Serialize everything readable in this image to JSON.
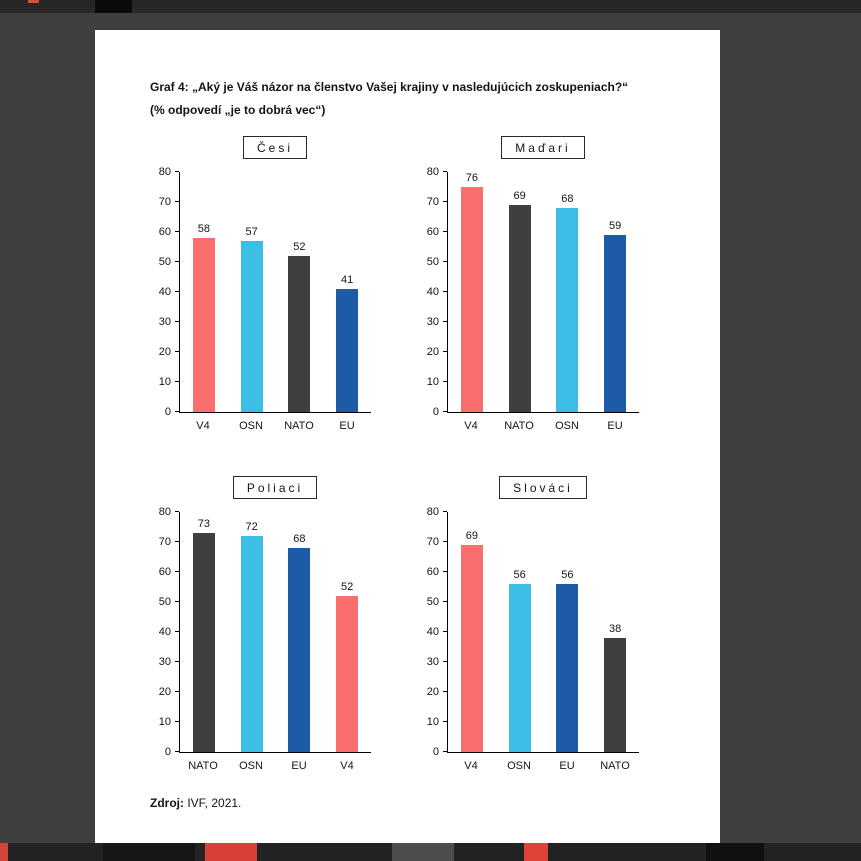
{
  "page": {
    "title_line1": "Graf 4: „Aký je Váš názor na členstvo Vašej krajiny v nasledujúcich zoskupeniach?“",
    "title_line2": "(% odpovedí „je to dobrá vec“)",
    "source_label": "Zdroj:",
    "source_text": " IVF, 2021."
  },
  "colors": {
    "v4": "#fb6e6e",
    "osn": "#3cbde6",
    "nato": "#3f3f41",
    "eu": "#1d5ba6"
  },
  "chart_data": [
    {
      "type": "bar",
      "title": "Česi",
      "categories": [
        "V4",
        "OSN",
        "NATO",
        "EU"
      ],
      "values": [
        58,
        57,
        52,
        41
      ],
      "colors": [
        "#fb6e6e",
        "#3cbde6",
        "#3f3f41",
        "#1d5ba6"
      ],
      "ylim": [
        0,
        80
      ],
      "yticks": [
        0,
        10,
        20,
        30,
        40,
        50,
        60,
        70,
        80
      ],
      "grid": false,
      "legend": false
    },
    {
      "type": "bar",
      "title": "Maďari",
      "categories": [
        "V4",
        "NATO",
        "OSN",
        "EU"
      ],
      "values": [
        76,
        69,
        68,
        59
      ],
      "colors": [
        "#fb6e6e",
        "#3f3f41",
        "#3cbde6",
        "#1d5ba6"
      ],
      "ylim": [
        0,
        80
      ],
      "yticks": [
        0,
        10,
        20,
        30,
        40,
        50,
        60,
        70,
        80
      ],
      "grid": false,
      "legend": false
    },
    {
      "type": "bar",
      "title": "Poliaci",
      "categories": [
        "NATO",
        "OSN",
        "EU",
        "V4"
      ],
      "values": [
        73,
        72,
        68,
        52
      ],
      "colors": [
        "#3f3f41",
        "#3cbde6",
        "#1d5ba6",
        "#fb6e6e"
      ],
      "ylim": [
        0,
        80
      ],
      "yticks": [
        0,
        10,
        20,
        30,
        40,
        50,
        60,
        70,
        80
      ],
      "grid": false,
      "legend": false
    },
    {
      "type": "bar",
      "title": "Slováci",
      "categories": [
        "V4",
        "OSN",
        "EU",
        "NATO"
      ],
      "values": [
        69,
        56,
        56,
        38
      ],
      "colors": [
        "#fb6e6e",
        "#3cbde6",
        "#1d5ba6",
        "#3f3f41"
      ],
      "ylim": [
        0,
        80
      ],
      "yticks": [
        0,
        10,
        20,
        30,
        40,
        50,
        60,
        70,
        80
      ],
      "grid": false,
      "legend": false
    }
  ]
}
